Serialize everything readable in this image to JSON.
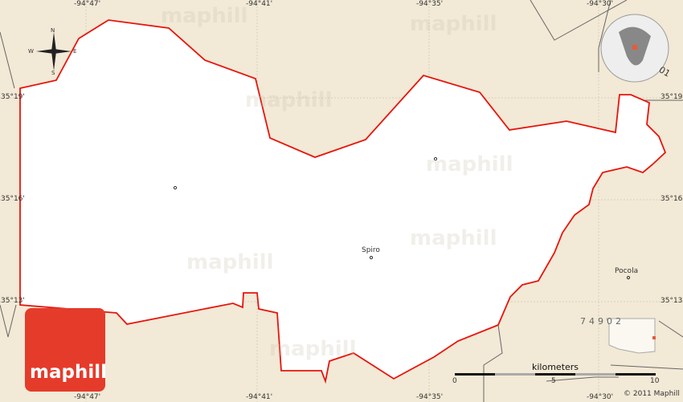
{
  "map": {
    "colors": {
      "land": "#f2e9d6",
      "region": "#ffffff",
      "border": "#e8140c",
      "logo": "#e53b2b"
    },
    "longitude_labels": [
      "-94°47'",
      "-94°41'",
      "-94°35'",
      "-94°30'"
    ],
    "latitude_labels": [
      "35°19'",
      "35°16'",
      "35°13'"
    ],
    "places": [
      {
        "name": "Spiro"
      },
      {
        "name": "Pocola"
      }
    ],
    "zip_code": "74902",
    "zip_partial": "01",
    "compass": {
      "n": "N",
      "s": "S",
      "e": "E",
      "w": "W"
    },
    "scale": {
      "unit": "kilometers",
      "ticks": [
        "0",
        "5",
        "10"
      ]
    },
    "copyright": "© 2011 Maphill",
    "logo_text": "maphill",
    "watermark": "maphill"
  }
}
